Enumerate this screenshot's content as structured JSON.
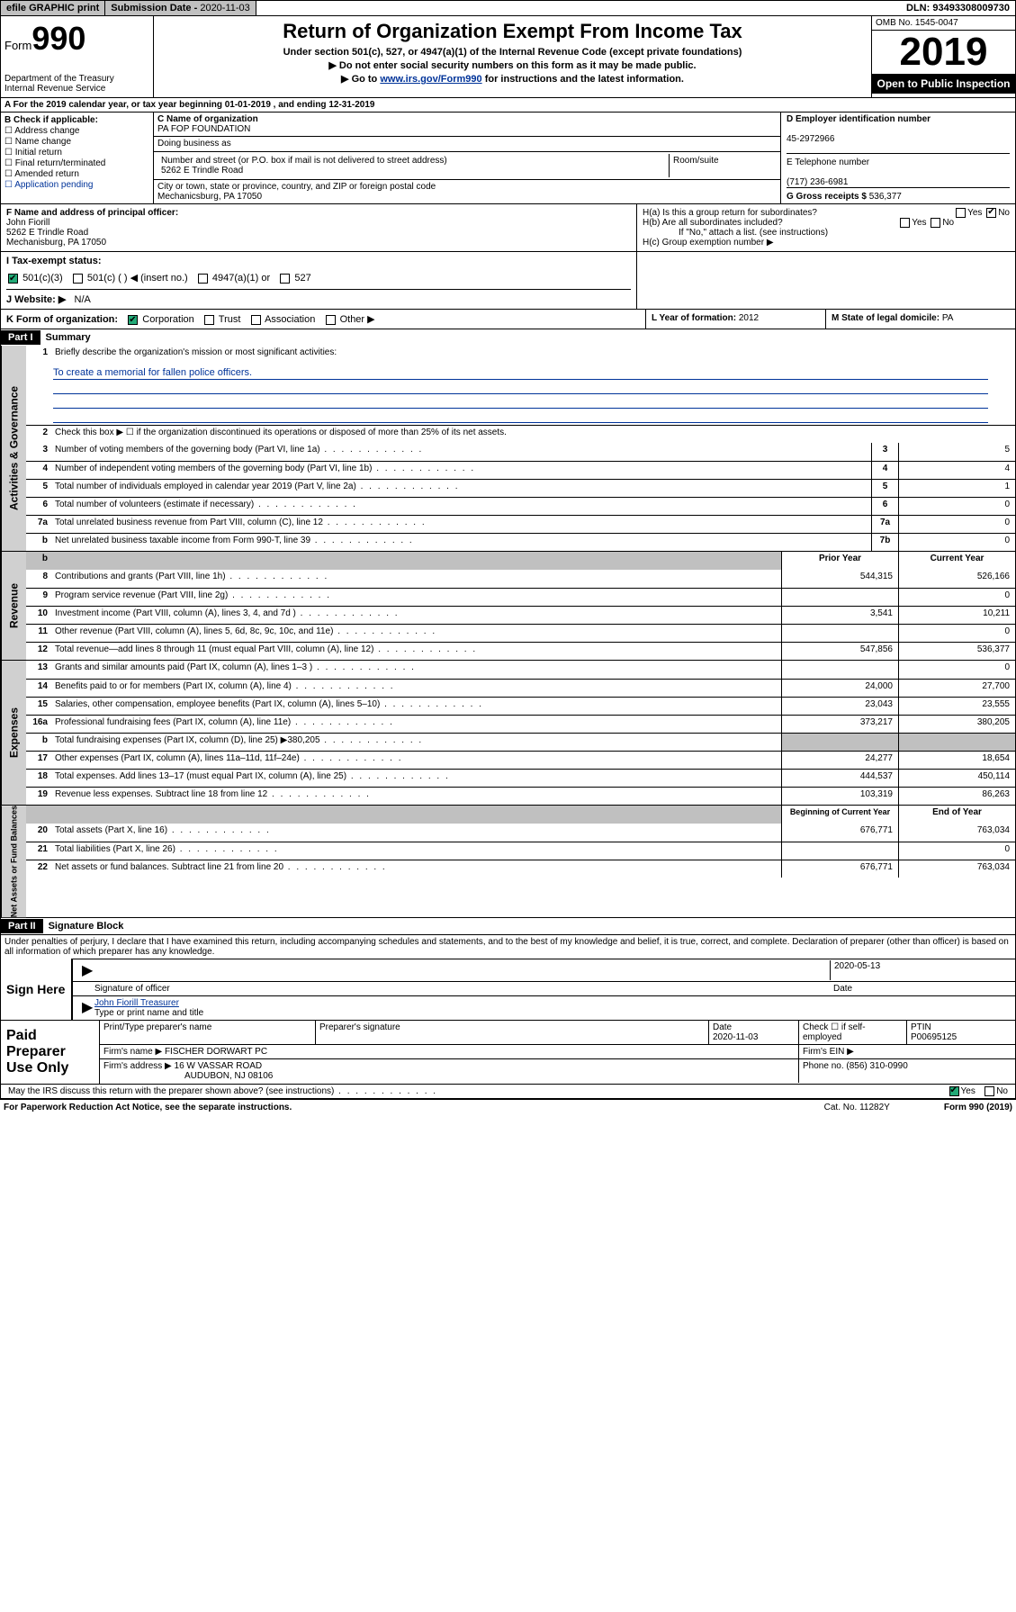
{
  "top": {
    "efile": "efile GRAPHIC print",
    "subdate_lbl": "Submission Date - ",
    "subdate": "2020-11-03",
    "dln": "DLN: 93493308009730"
  },
  "header": {
    "form_pre": "Form",
    "form_num": "990",
    "dept": "Department of the Treasury",
    "irs": "Internal Revenue Service",
    "title": "Return of Organization Exempt From Income Tax",
    "sub1": "Under section 501(c), 527, or 4947(a)(1) of the Internal Revenue Code (except private foundations)",
    "sub2": "▶ Do not enter social security numbers on this form as it may be made public.",
    "sub3a": "▶ Go to ",
    "sub3_link": "www.irs.gov/Form990",
    "sub3b": " for instructions and the latest information.",
    "omb": "OMB No. 1545-0047",
    "year": "2019",
    "opti": "Open to Public Inspection"
  },
  "rowA": "A   For the 2019 calendar year, or tax year beginning 01-01-2019     , and ending 12-31-2019",
  "boxB": {
    "label": "B Check if applicable:",
    "items": [
      "Address change",
      "Name change",
      "Initial return",
      "Final return/terminated",
      "Amended return",
      "Application pending"
    ]
  },
  "boxC": {
    "name_lbl": "C Name of organization",
    "name": "PA FOP FOUNDATION",
    "dba_lbl": "Doing business as",
    "street_lbl": "Number and street (or P.O. box if mail is not delivered to street address)",
    "room_lbl": "Room/suite",
    "street": "5262 E Trindle Road",
    "city_lbl": "City or town, state or province, country, and ZIP or foreign postal code",
    "city": "Mechanicsburg, PA  17050"
  },
  "boxD": {
    "ein_lbl": "D  Employer identification number",
    "ein": "45-2972966",
    "tel_lbl": "E  Telephone number",
    "tel": "(717) 236-6981",
    "gross_lbl": "G Gross receipts $ ",
    "gross": "536,377"
  },
  "boxF": {
    "lbl": "F  Name and address of principal officer:",
    "name": "John Fiorill",
    "street": "5262 E Trindle Road",
    "city": "Mechanisburg, PA  17050"
  },
  "boxH": {
    "a": "H(a)  Is this a group return for subordinates?",
    "b": "H(b)  Are all subordinates included?",
    "b_note": "If \"No,\" attach a list. (see instructions)",
    "c": "H(c)  Group exemption number ▶"
  },
  "rowI": {
    "lbl": "I    Tax-exempt status:",
    "c3": "501(c)(3)",
    "c": "501(c) (    ) ◀ (insert no.)",
    "a1": "4947(a)(1) or",
    "s527": "527"
  },
  "rowJ": {
    "lbl": "J    Website: ▶",
    "val": "N/A"
  },
  "rowK": {
    "lbl": "K Form of organization:",
    "corp": "Corporation",
    "trust": "Trust",
    "assoc": "Association",
    "other": "Other ▶"
  },
  "rowL": {
    "lbl": "L Year of formation: ",
    "val": "2012"
  },
  "rowM": {
    "lbl": "M State of legal domicile: ",
    "val": "PA"
  },
  "part1": {
    "label": "Part I",
    "title": "Summary"
  },
  "summary": {
    "q1_lbl": "Briefly describe the organization's mission or most significant activities:",
    "q1_ans": "To create a memorial for fallen police officers.",
    "q2": "Check this box ▶ ☐  if the organization discontinued its operations or disposed of more than 25% of its net assets.",
    "side_gov": "Activities & Governance",
    "side_rev": "Revenue",
    "side_exp": "Expenses",
    "side_net": "Net Assets or Fund Balances",
    "lines": [
      {
        "n": "3",
        "d": "Number of voting members of the governing body (Part VI, line 1a)",
        "box": "3",
        "v": "5"
      },
      {
        "n": "4",
        "d": "Number of independent voting members of the governing body (Part VI, line 1b)",
        "box": "4",
        "v": "4"
      },
      {
        "n": "5",
        "d": "Total number of individuals employed in calendar year 2019 (Part V, line 2a)",
        "box": "5",
        "v": "1"
      },
      {
        "n": "6",
        "d": "Total number of volunteers (estimate if necessary)",
        "box": "6",
        "v": "0"
      },
      {
        "n": "7a",
        "d": "Total unrelated business revenue from Part VIII, column (C), line 12",
        "box": "7a",
        "v": "0"
      },
      {
        "n": "b",
        "d": "Net unrelated business taxable income from Form 990-T, line 39",
        "box": "7b",
        "v": "0"
      }
    ],
    "prior_hdr": "Prior Year",
    "curr_hdr": "Current Year",
    "rev": [
      {
        "n": "8",
        "d": "Contributions and grants (Part VIII, line 1h)",
        "p": "544,315",
        "c": "526,166"
      },
      {
        "n": "9",
        "d": "Program service revenue (Part VIII, line 2g)",
        "p": "",
        "c": "0"
      },
      {
        "n": "10",
        "d": "Investment income (Part VIII, column (A), lines 3, 4, and 7d )",
        "p": "3,541",
        "c": "10,211"
      },
      {
        "n": "11",
        "d": "Other revenue (Part VIII, column (A), lines 5, 6d, 8c, 9c, 10c, and 11e)",
        "p": "",
        "c": "0"
      },
      {
        "n": "12",
        "d": "Total revenue—add lines 8 through 11 (must equal Part VIII, column (A), line 12)",
        "p": "547,856",
        "c": "536,377"
      }
    ],
    "exp": [
      {
        "n": "13",
        "d": "Grants and similar amounts paid (Part IX, column (A), lines 1–3 )",
        "p": "",
        "c": "0"
      },
      {
        "n": "14",
        "d": "Benefits paid to or for members (Part IX, column (A), line 4)",
        "p": "24,000",
        "c": "27,700"
      },
      {
        "n": "15",
        "d": "Salaries, other compensation, employee benefits (Part IX, column (A), lines 5–10)",
        "p": "23,043",
        "c": "23,555"
      },
      {
        "n": "16a",
        "d": "Professional fundraising fees (Part IX, column (A), line 11e)",
        "p": "373,217",
        "c": "380,205"
      },
      {
        "n": "b",
        "d": "Total fundraising expenses (Part IX, column (D), line 25) ▶380,205",
        "p": "shade",
        "c": "shade"
      },
      {
        "n": "17",
        "d": "Other expenses (Part IX, column (A), lines 11a–11d, 11f–24e)",
        "p": "24,277",
        "c": "18,654"
      },
      {
        "n": "18",
        "d": "Total expenses. Add lines 13–17 (must equal Part IX, column (A), line 25)",
        "p": "444,537",
        "c": "450,114"
      },
      {
        "n": "19",
        "d": "Revenue less expenses. Subtract line 18 from line 12",
        "p": "103,319",
        "c": "86,263"
      }
    ],
    "net_hdr_p": "Beginning of Current Year",
    "net_hdr_c": "End of Year",
    "net": [
      {
        "n": "20",
        "d": "Total assets (Part X, line 16)",
        "p": "676,771",
        "c": "763,034"
      },
      {
        "n": "21",
        "d": "Total liabilities (Part X, line 26)",
        "p": "",
        "c": "0"
      },
      {
        "n": "22",
        "d": "Net assets or fund balances. Subtract line 21 from line 20",
        "p": "676,771",
        "c": "763,034"
      }
    ]
  },
  "part2": {
    "label": "Part II",
    "title": "Signature Block"
  },
  "sig": {
    "intro": "Under penalties of perjury, I declare that I have examined this return, including accompanying schedules and statements, and to the best of my knowledge and belief, it is true, correct, and complete. Declaration of preparer (other than officer) is based on all information of which preparer has any knowledge.",
    "sign_here": "Sign Here",
    "sig_of_officer": "Signature of officer",
    "date": "2020-05-13",
    "date_lbl": "Date",
    "officer_name": "John Fiorill  Treasurer",
    "type_name": "Type or print name and title"
  },
  "prep": {
    "lbl": "Paid Preparer Use Only",
    "h_name": "Print/Type preparer's name",
    "h_sig": "Preparer's signature",
    "h_date": "Date",
    "date": "2020-11-03",
    "h_check": "Check ☐ if self-employed",
    "h_ptin": "PTIN",
    "ptin": "P00695125",
    "firm_name_lbl": "Firm's name    ▶",
    "firm_name": "FISCHER DORWART PC",
    "firm_ein_lbl": "Firm's EIN ▶",
    "firm_addr_lbl": "Firm's address ▶",
    "firm_addr1": "16 W VASSAR ROAD",
    "firm_addr2": "AUDUBON, NJ  08106",
    "firm_phone_lbl": "Phone no. ",
    "firm_phone": "(856) 310-0990"
  },
  "discuss": "May the IRS discuss this return with the preparer shown above? (see instructions)",
  "paperwork": {
    "t": "For Paperwork Reduction Act Notice, see the separate instructions.",
    "cat": "Cat. No. 11282Y",
    "form": "Form 990 (2019)"
  }
}
